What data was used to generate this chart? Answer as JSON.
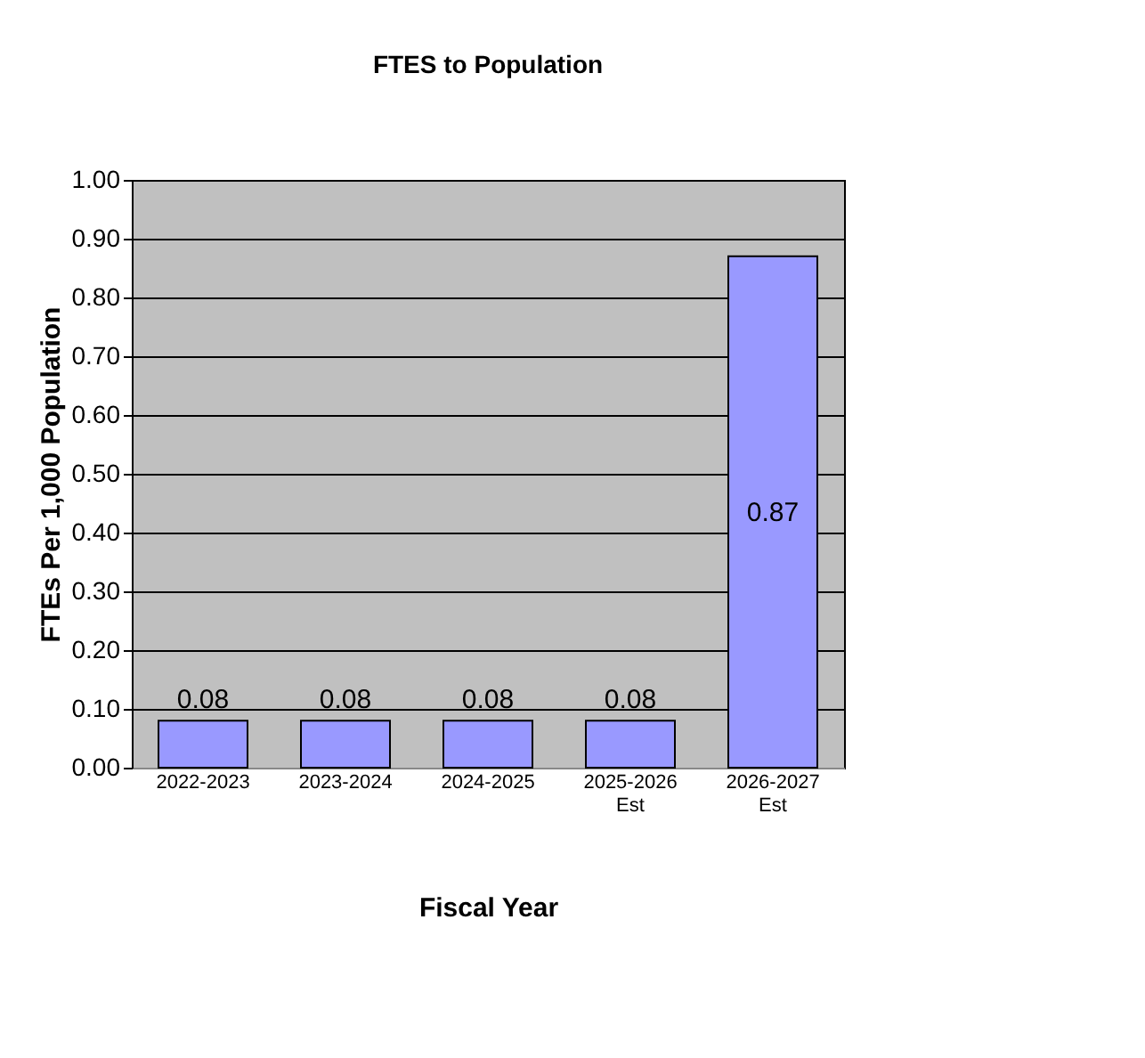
{
  "chart_data": {
    "type": "bar",
    "title": "FTES to Population",
    "xlabel": "Fiscal Year",
    "ylabel": "FTEs Per 1,000 Population",
    "categories": [
      "2022-2023",
      "2023-2024",
      "2024-2025",
      "2025-2026 Est",
      "2026-2027 Est"
    ],
    "values": [
      0.08,
      0.08,
      0.08,
      0.08,
      0.87
    ],
    "color": "#9999ff",
    "data_labels": true,
    "ylim": [
      0,
      1
    ],
    "yticks": [
      {
        "value": 0,
        "label": "0.00"
      },
      {
        "value": 0.1,
        "label": "0.10"
      },
      {
        "value": 0.2,
        "label": "0.20"
      },
      {
        "value": 0.3,
        "label": "0.30"
      },
      {
        "value": 0.4,
        "label": "0.40"
      },
      {
        "value": 0.5,
        "label": "0.50"
      },
      {
        "value": 0.6,
        "label": "0.60"
      },
      {
        "value": 0.7,
        "label": "0.70"
      },
      {
        "value": 0.8,
        "label": "0.80"
      },
      {
        "value": 0.9,
        "label": "0.90"
      },
      {
        "value": 1,
        "label": "1.00"
      }
    ],
    "grid": "y"
  }
}
